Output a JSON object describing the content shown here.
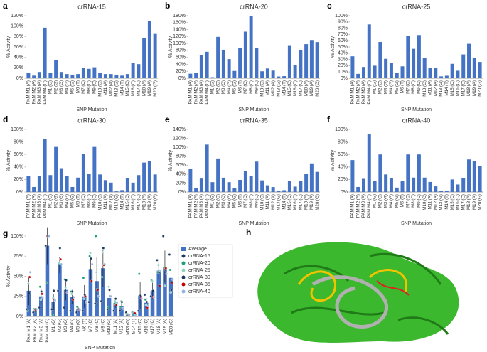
{
  "chart_data": [
    {
      "type": "bar",
      "panel": "a",
      "title": "crRNA-15",
      "ylabel": "% Activity",
      "xlabel": "SNP Mutation",
      "color": "#4472c4",
      "categories": [
        "PAM M1 (A)",
        "PAM M2 (A)",
        "PAM M3 (A)",
        "PAM M4 (C)",
        "M1 (G)",
        "M2 (G)",
        "M3 (G)",
        "M4 (G)",
        "M5 (G)",
        "M6 (T)",
        "M7 (C)",
        "M8 (C)",
        "M9 (C)",
        "M10 (G)",
        "M11 (A)",
        "M12 (A)",
        "M13 (G)",
        "M14 (T)",
        "M15 (C)",
        "M16 (C)",
        "M17 (C)",
        "M18 (A)",
        "M19 (A)",
        "M20 (G)"
      ],
      "values": [
        10,
        5,
        12,
        97,
        10,
        35,
        12,
        8,
        6,
        8,
        20,
        18,
        21,
        10,
        8,
        8,
        6,
        5,
        8,
        30,
        27,
        77,
        110,
        85
      ],
      "ylim": [
        0,
        120
      ],
      "yticks": [
        {
          "value": 0,
          "label": "0%"
        },
        {
          "value": 20,
          "label": "20%"
        },
        {
          "value": 40,
          "label": "40%"
        },
        {
          "value": 60,
          "label": "60%"
        },
        {
          "value": 80,
          "label": "80%"
        },
        {
          "value": 100,
          "label": "100%"
        },
        {
          "value": 120,
          "label": "120%"
        }
      ]
    },
    {
      "type": "bar",
      "panel": "b",
      "title": "crRNA-20",
      "ylabel": "% Activity",
      "xlabel": "SNP Mutation",
      "color": "#4472c4",
      "categories": [
        "PAM M1 (A)",
        "PAM M2 (A)",
        "PAM M3 (A)",
        "PAM M4 (C)",
        "M1 (G)",
        "M2 (G)",
        "M3 (G)",
        "M4 (G)",
        "M5 (G)",
        "M6 (T)",
        "M7 (C)",
        "M8 (C)",
        "M9 (C)",
        "M10 (G)",
        "M11 (A)",
        "M12 (A)",
        "M13 (G)",
        "M14 (T)",
        "M15 (C)",
        "M16 (C)",
        "M17 (C)",
        "M18 (A)",
        "M19 (A)",
        "M20 (G)"
      ],
      "values": [
        13,
        16,
        67,
        76,
        3,
        119,
        82,
        55,
        21,
        86,
        134,
        179,
        88,
        20,
        28,
        22,
        5,
        6,
        95,
        37,
        80,
        98,
        110,
        104
      ],
      "ylim": [
        0,
        180
      ],
      "yticks": [
        {
          "value": 0,
          "label": "0%"
        },
        {
          "value": 20,
          "label": "20%"
        },
        {
          "value": 40,
          "label": "40%"
        },
        {
          "value": 60,
          "label": "60%"
        },
        {
          "value": 80,
          "label": "80%"
        },
        {
          "value": 100,
          "label": "100%"
        },
        {
          "value": 120,
          "label": "120%"
        },
        {
          "value": 140,
          "label": "140%"
        },
        {
          "value": 160,
          "label": "160%"
        },
        {
          "value": 180,
          "label": "180%"
        }
      ]
    },
    {
      "type": "bar",
      "panel": "c",
      "title": "crRNA-25",
      "ylabel": "% Activity",
      "xlabel": "SNP Mutation",
      "color": "#4472c4",
      "categories": [
        "PAM M1 (A)",
        "PAM M2 (A)",
        "PAM M3 (A)",
        "PAM M4 (C)",
        "M1 (G)",
        "M2 (G)",
        "M3 (G)",
        "M4 (G)",
        "M5 (G)",
        "M6 (T)",
        "M7 (C)",
        "M8 (C)",
        "M9 (C)",
        "M10 (G)",
        "M11 (A)",
        "M12 (A)",
        "M13 (G)",
        "M14 (T)",
        "M15 (C)",
        "M16 (C)",
        "M17 (C)",
        "M18 (A)",
        "M19 (A)",
        "M20 (G)"
      ],
      "values": [
        35,
        7,
        18,
        86,
        20,
        58,
        31,
        24,
        8,
        19,
        68,
        47,
        69,
        32,
        16,
        16,
        3,
        4,
        23,
        12,
        38,
        55,
        33,
        26
      ],
      "ylim": [
        0,
        100
      ],
      "yticks": [
        {
          "value": 0,
          "label": "0%"
        },
        {
          "value": 10,
          "label": "10%"
        },
        {
          "value": 20,
          "label": "20%"
        },
        {
          "value": 30,
          "label": "30%"
        },
        {
          "value": 40,
          "label": "40%"
        },
        {
          "value": 50,
          "label": "50%"
        },
        {
          "value": 60,
          "label": "60%"
        },
        {
          "value": 70,
          "label": "70%"
        },
        {
          "value": 80,
          "label": "80%"
        },
        {
          "value": 90,
          "label": "90%"
        },
        {
          "value": 100,
          "label": "100%"
        }
      ]
    },
    {
      "type": "bar",
      "panel": "d",
      "title": "crRNA-30",
      "ylabel": "% Activity",
      "xlabel": "SNP Mutation",
      "color": "#4472c4",
      "categories": [
        "PAM M1 (A)",
        "PAM M2 (A)",
        "PAM M3 (A)",
        "PAM M4 (C)",
        "M1 (G)",
        "M2 (G)",
        "M3 (G)",
        "M4 (G)",
        "M5 (G)",
        "M6 (T)",
        "M7 (C)",
        "M8 (C)",
        "M9 (C)",
        "M10 (G)",
        "M11 (A)",
        "M12 (A)",
        "M13 (G)",
        "M14 (T)",
        "M15 (C)",
        "M16 (C)",
        "M17 (C)",
        "M18 (A)",
        "M19 (A)",
        "M20 (G)"
      ],
      "values": [
        25,
        8,
        26,
        85,
        27,
        72,
        38,
        26,
        8,
        23,
        61,
        29,
        72,
        28,
        19,
        15,
        1,
        3,
        22,
        15,
        27,
        47,
        49,
        28
      ],
      "ylim": [
        0,
        100
      ],
      "yticks": [
        {
          "value": 0,
          "label": "0%"
        },
        {
          "value": 20,
          "label": "20%"
        },
        {
          "value": 40,
          "label": "40%"
        },
        {
          "value": 60,
          "label": "60%"
        },
        {
          "value": 80,
          "label": "80%"
        },
        {
          "value": 100,
          "label": "100%"
        }
      ]
    },
    {
      "type": "bar",
      "panel": "e",
      "title": "crRNA-35",
      "ylabel": "% Activity",
      "xlabel": "SNP Mutation",
      "color": "#4472c4",
      "categories": [
        "PAM M1 (A)",
        "PAM M2 (A)",
        "PAM M3 (A)",
        "PAM M4 (C)",
        "M1 (G)",
        "M2 (G)",
        "M3 (G)",
        "M4 (G)",
        "M5 (G)",
        "M6 (T)",
        "M7 (C)",
        "M8 (C)",
        "M9 (C)",
        "M10 (G)",
        "M11 (A)",
        "M12 (A)",
        "M13 (G)",
        "M14 (T)",
        "M15 (C)",
        "M16 (C)",
        "M17 (C)",
        "M18 (A)",
        "M19 (A)",
        "M20 (G)"
      ],
      "values": [
        52,
        8,
        30,
        106,
        22,
        75,
        32,
        22,
        8,
        27,
        47,
        35,
        68,
        26,
        15,
        11,
        2,
        4,
        24,
        12,
        25,
        40,
        64,
        45
      ],
      "ylim": [
        0,
        140
      ],
      "yticks": [
        {
          "value": 0,
          "label": "0%"
        },
        {
          "value": 20,
          "label": "20%"
        },
        {
          "value": 40,
          "label": "40%"
        },
        {
          "value": 60,
          "label": "60%"
        },
        {
          "value": 80,
          "label": "80%"
        },
        {
          "value": 100,
          "label": "100%"
        },
        {
          "value": 120,
          "label": "120%"
        },
        {
          "value": 140,
          "label": "140%"
        }
      ]
    },
    {
      "type": "bar",
      "panel": "f",
      "title": "crRNA-40",
      "ylabel": "% Activity",
      "xlabel": "SNP Mutation",
      "color": "#4472c4",
      "categories": [
        "PAM M1 (A)",
        "PAM M2 (A)",
        "PAM M3 (A)",
        "PAM M4 (C)",
        "M1 (G)",
        "M2 (G)",
        "M3 (G)",
        "M4 (G)",
        "M5 (G)",
        "M6 (T)",
        "M7 (C)",
        "M8 (C)",
        "M9 (C)",
        "M10 (G)",
        "M11 (A)",
        "M12 (A)",
        "M13 (G)",
        "M14 (T)",
        "M15 (C)",
        "M16 (C)",
        "M17 (C)",
        "M18 (A)",
        "M19 (A)",
        "M20 (G)"
      ],
      "values": [
        51,
        8,
        21,
        92,
        18,
        60,
        28,
        22,
        7,
        17,
        60,
        23,
        60,
        23,
        16,
        9,
        2,
        2,
        20,
        12,
        22,
        52,
        49,
        42
      ],
      "ylim": [
        0,
        100
      ],
      "yticks": [
        {
          "value": 0,
          "label": "0%"
        },
        {
          "value": 20,
          "label": "20%"
        },
        {
          "value": 40,
          "label": "40%"
        },
        {
          "value": 60,
          "label": "60%"
        },
        {
          "value": 80,
          "label": "80%"
        },
        {
          "value": 100,
          "label": "100%"
        }
      ]
    },
    {
      "type": "bar",
      "panel": "g",
      "ylabel": "% Activity",
      "xlabel": "SNP Mutation",
      "legend": "right",
      "categories": [
        "PAM M1 (A)",
        "PAM M2 (A)",
        "PAM M3 (A)",
        "PAM M4 (C)",
        "M1 (G)",
        "M2 (G)",
        "M3 (G)",
        "M4 (G)",
        "M5 (G)",
        "M6 (T)",
        "M7 (C)",
        "M8 (C)",
        "M9 (C)",
        "M10 (G)",
        "M11 (A)",
        "M12 (A)",
        "M13 (G)",
        "M14 (T)",
        "M15 (C)",
        "M16 (C)",
        "M17 (C)",
        "M18 (A)",
        "M19 (A)",
        "M20 (G)"
      ],
      "series": [
        {
          "name": "Average",
          "color": "#4472c4",
          "values": [
            32,
            8,
            25,
            88,
            18,
            64,
            33,
            24,
            9,
            25,
            59,
            44,
            60,
            23,
            16,
            13,
            3,
            4,
            26,
            17,
            32,
            57,
            62,
            48
          ],
          "errors": [
            18,
            2,
            9,
            23,
            10,
            10,
            13,
            9,
            3,
            14,
            14,
            30,
            23,
            10,
            5,
            4,
            1,
            1,
            17,
            6,
            10,
            10,
            20,
            17
          ]
        },
        {
          "name": "crRNA-15",
          "color": "#1f3864",
          "values": [
            9,
            5,
            11,
            88,
            9,
            32,
            11,
            7,
            5,
            7,
            18,
            16,
            19,
            9,
            7,
            7,
            5,
            5,
            7,
            27,
            25,
            70,
            100,
            77
          ]
        },
        {
          "name": "crRNA-20",
          "color": "#1e9e78",
          "values": [
            7,
            9,
            37,
            42,
            2,
            66,
            46,
            31,
            12,
            48,
            75,
            100,
            49,
            11,
            16,
            12,
            3,
            3,
            53,
            21,
            45,
            55,
            61,
            58
          ]
        },
        {
          "name": "crRNA-25",
          "color": "#8fd3c3",
          "values": [
            41,
            8,
            21,
            100,
            23,
            67,
            36,
            28,
            9,
            22,
            79,
            55,
            80,
            37,
            19,
            19,
            3,
            5,
            27,
            14,
            44,
            64,
            38,
            30
          ]
        },
        {
          "name": "crRNA-30",
          "color": "#17375e",
          "values": [
            29,
            9,
            31,
            100,
            32,
            85,
            45,
            31,
            9,
            27,
            72,
            34,
            85,
            33,
            22,
            18,
            1,
            4,
            26,
            18,
            32,
            55,
            58,
            33
          ]
        },
        {
          "name": "crRNA-35",
          "color": "#c00000",
          "values": [
            49,
            8,
            28,
            100,
            21,
            71,
            30,
            21,
            8,
            25,
            44,
            33,
            64,
            25,
            14,
            10,
            2,
            4,
            23,
            11,
            24,
            38,
            60,
            42
          ]
        },
        {
          "name": "crRNA-40",
          "color": "#8db4e2",
          "values": [
            55,
            9,
            23,
            100,
            20,
            65,
            30,
            24,
            8,
            18,
            65,
            25,
            65,
            25,
            17,
            10,
            2,
            2,
            22,
            13,
            24,
            57,
            53,
            46
          ]
        }
      ],
      "ylim": [
        0,
        100
      ],
      "yticks": [
        {
          "value": 0,
          "label": "0%"
        },
        {
          "value": 25,
          "label": "25%"
        },
        {
          "value": 50,
          "label": "50%"
        },
        {
          "value": 75,
          "label": "75%"
        },
        {
          "value": 100,
          "label": "100%"
        }
      ]
    }
  ],
  "image": {
    "panel": "h"
  }
}
